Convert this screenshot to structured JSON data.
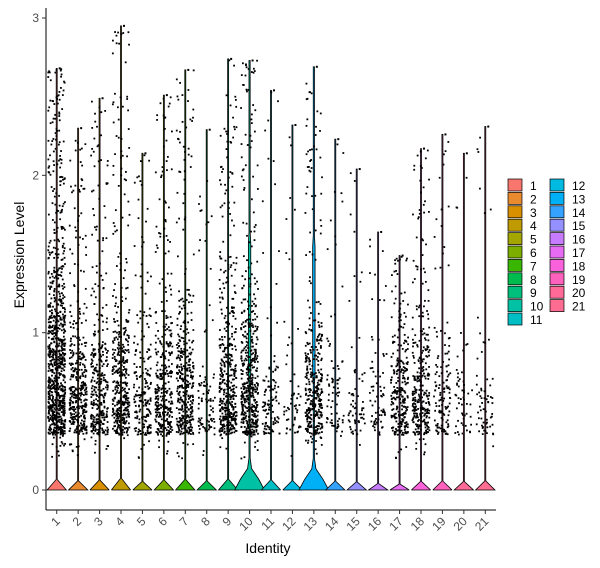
{
  "chart_data": {
    "type": "violin",
    "xlabel": "Identity",
    "ylabel": "Expression Level",
    "ylim": [
      0,
      3
    ],
    "yticks": [
      0,
      1,
      2,
      3
    ],
    "grid": false,
    "legend_position": "right",
    "categories": [
      "1",
      "2",
      "3",
      "4",
      "5",
      "6",
      "7",
      "8",
      "9",
      "10",
      "11",
      "12",
      "13",
      "14",
      "15",
      "16",
      "17",
      "18",
      "19",
      "20",
      "21"
    ],
    "colors": [
      "#F8766D",
      "#E98A2F",
      "#D89000",
      "#BF9A00",
      "#A3A500",
      "#7CAE00",
      "#39B600",
      "#00BB4E",
      "#00BF7D",
      "#00C1A3",
      "#00BFC4",
      "#00BAE0",
      "#00B0F6",
      "#35A2FF",
      "#9590FF",
      "#C77CFF",
      "#E76BF3",
      "#FA62DB",
      "#FF62BC",
      "#FF6A98",
      "#FF6C91"
    ],
    "max_values": [
      2.68,
      2.3,
      2.49,
      2.95,
      2.14,
      2.51,
      2.67,
      2.29,
      2.74,
      2.73,
      2.54,
      2.32,
      2.69,
      2.23,
      2.04,
      1.64,
      1.49,
      2.17,
      2.26,
      2.14,
      2.31
    ],
    "cell_density": [
      1.0,
      0.42,
      0.38,
      0.45,
      0.22,
      0.38,
      0.42,
      0.1,
      0.5,
      0.55,
      0.12,
      0.06,
      0.4,
      0.08,
      0.07,
      0.08,
      0.3,
      0.34,
      0.14,
      0.06,
      0.07
    ],
    "violin_peak_width": [
      0,
      0,
      0,
      0,
      0,
      0,
      0,
      0,
      0,
      0.55,
      0,
      0,
      0.55,
      0,
      0,
      0,
      0,
      0,
      0,
      0,
      0
    ]
  }
}
